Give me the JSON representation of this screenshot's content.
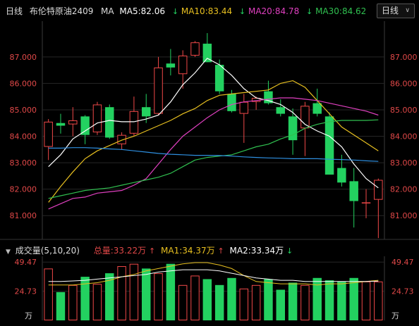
{
  "header": {
    "period_label": "日线",
    "instrument": "布伦特原油2409",
    "ma_label": "MA",
    "ma5": "MA5:82.06",
    "ma10": "MA10:83.44",
    "ma20": "MA20:84.78",
    "ma30": "MA30:84.62",
    "period_select": "日线"
  },
  "volume_header": {
    "title": "成交量(5,10,20)",
    "total": "总量:33.22万",
    "ma1": "MA1:34.37万",
    "ma2": "MA2:33.34万"
  },
  "colors": {
    "up": "#f04848",
    "down": "#23d160",
    "ma5": "#ffffff",
    "ma10": "#e8c020",
    "ma20": "#e040c0",
    "ma30": "#30c050",
    "blue_line": "#2e8fe0",
    "grid": "#262626",
    "axis_text": "#e04848"
  },
  "chart_data": {
    "type": "candlestick",
    "y_ticks": [
      "87.000",
      "86.000",
      "85.000",
      "84.000",
      "83.000",
      "82.000",
      "81.000"
    ],
    "y_tick_values": [
      87,
      86,
      85,
      84,
      83,
      82,
      81
    ],
    "ylim": [
      80.1,
      88.3
    ],
    "volume_ticks": [
      "49.47",
      "24.73",
      "万"
    ],
    "volume_tick_values": [
      49.47,
      24.73
    ],
    "volume_ylim": [
      0,
      52
    ],
    "candles": [
      {
        "o": 83.6,
        "h": 84.65,
        "l": 83.1,
        "c": 84.55,
        "v": 44
      },
      {
        "o": 84.5,
        "h": 84.85,
        "l": 84.1,
        "c": 84.4,
        "v": 24
      },
      {
        "o": 84.45,
        "h": 85.1,
        "l": 84.0,
        "c": 84.6,
        "v": 30
      },
      {
        "o": 84.75,
        "h": 84.8,
        "l": 83.7,
        "c": 84.05,
        "v": 37
      },
      {
        "o": 84.15,
        "h": 85.3,
        "l": 84.05,
        "c": 85.2,
        "v": 31
      },
      {
        "o": 85.1,
        "h": 85.2,
        "l": 83.9,
        "c": 83.95,
        "v": 40
      },
      {
        "o": 83.7,
        "h": 84.15,
        "l": 83.5,
        "c": 84.05,
        "v": 46
      },
      {
        "o": 84.1,
        "h": 85.5,
        "l": 84.0,
        "c": 84.95,
        "v": 48
      },
      {
        "o": 85.1,
        "h": 85.6,
        "l": 84.5,
        "c": 84.75,
        "v": 44
      },
      {
        "o": 84.85,
        "h": 87.0,
        "l": 84.8,
        "c": 86.6,
        "v": 40
      },
      {
        "o": 86.75,
        "h": 87.3,
        "l": 86.3,
        "c": 86.6,
        "v": 48
      },
      {
        "o": 86.35,
        "h": 87.25,
        "l": 85.8,
        "c": 87.05,
        "v": 30
      },
      {
        "o": 87.05,
        "h": 87.6,
        "l": 87.0,
        "c": 87.55,
        "v": 38
      },
      {
        "o": 87.5,
        "h": 87.9,
        "l": 86.8,
        "c": 86.8,
        "v": 35
      },
      {
        "o": 86.7,
        "h": 86.9,
        "l": 85.6,
        "c": 85.7,
        "v": 30
      },
      {
        "o": 85.6,
        "h": 85.75,
        "l": 84.9,
        "c": 84.95,
        "v": 36
      },
      {
        "o": 84.85,
        "h": 85.6,
        "l": 83.75,
        "c": 85.3,
        "v": 27
      },
      {
        "o": 85.3,
        "h": 85.5,
        "l": 85.0,
        "c": 85.45,
        "v": 30
      },
      {
        "o": 85.7,
        "h": 86.1,
        "l": 85.2,
        "c": 85.25,
        "v": 35
      },
      {
        "o": 85.1,
        "h": 85.4,
        "l": 84.75,
        "c": 84.85,
        "v": 26
      },
      {
        "o": 84.75,
        "h": 85.05,
        "l": 83.3,
        "c": 83.85,
        "v": 32
      },
      {
        "o": 84.3,
        "h": 85.3,
        "l": 83.25,
        "c": 85.15,
        "v": 30
      },
      {
        "o": 85.25,
        "h": 85.8,
        "l": 84.75,
        "c": 84.85,
        "v": 36
      },
      {
        "o": 84.75,
        "h": 84.9,
        "l": 82.55,
        "c": 82.55,
        "v": 34
      },
      {
        "o": 82.8,
        "h": 83.3,
        "l": 82.1,
        "c": 82.25,
        "v": 33
      },
      {
        "o": 82.3,
        "h": 82.8,
        "l": 80.55,
        "c": 81.55,
        "v": 36
      },
      {
        "o": 81.5,
        "h": 82.0,
        "l": 80.9,
        "c": 81.5,
        "v": 33
      },
      {
        "o": 81.6,
        "h": 82.4,
        "l": 80.15,
        "c": 82.35,
        "v": 33
      }
    ],
    "series": [
      {
        "name": "MA5",
        "values": [
          82.85,
          83.3,
          83.9,
          84.2,
          84.5,
          84.6,
          84.55,
          84.55,
          84.65,
          84.8,
          85.3,
          85.95,
          86.4,
          86.95,
          86.7,
          86.3,
          85.8,
          85.45,
          85.35,
          85.2,
          84.9,
          84.45,
          84.2,
          84.0,
          83.6,
          82.95,
          82.4,
          82.05
        ]
      },
      {
        "name": "MA10",
        "values": [
          81.5,
          82.1,
          82.65,
          83.15,
          83.45,
          83.65,
          83.85,
          84.0,
          84.2,
          84.4,
          84.6,
          84.85,
          85.05,
          85.35,
          85.55,
          85.6,
          85.65,
          85.7,
          85.75,
          86.0,
          86.1,
          85.85,
          85.35,
          84.85,
          84.35,
          84.05,
          83.75,
          83.45
        ]
      },
      {
        "name": "MA20",
        "values": [
          81.25,
          81.45,
          81.65,
          81.7,
          81.85,
          81.9,
          81.95,
          82.15,
          82.4,
          82.95,
          83.5,
          84.0,
          84.35,
          84.7,
          85.0,
          85.2,
          85.3,
          85.35,
          85.4,
          85.45,
          85.45,
          85.4,
          85.35,
          85.25,
          85.15,
          85.05,
          84.95,
          84.8
        ]
      },
      {
        "name": "MA30",
        "values": [
          81.65,
          81.75,
          81.85,
          81.95,
          82.0,
          82.05,
          82.15,
          82.25,
          82.35,
          82.45,
          82.6,
          82.85,
          83.1,
          83.2,
          83.25,
          83.3,
          83.45,
          83.6,
          83.7,
          83.9,
          84.05,
          84.3,
          84.45,
          84.55,
          84.6,
          84.6,
          84.6,
          84.62
        ]
      },
      {
        "name": "",
        "values": [
          83.55,
          83.55,
          83.57,
          83.57,
          83.55,
          83.52,
          83.5,
          83.45,
          83.4,
          83.35,
          83.32,
          83.3,
          83.28,
          83.28,
          83.27,
          83.25,
          83.22,
          83.2,
          83.18,
          83.17,
          83.15,
          83.15,
          83.15,
          83.13,
          83.12,
          83.1,
          83.07,
          83.05
        ]
      }
    ],
    "volume_series": [
      {
        "name": "MA1",
        "values": [
          30,
          30,
          30,
          31,
          32,
          34,
          37,
          39,
          42,
          44,
          46,
          48,
          49,
          49,
          47,
          44,
          38,
          33,
          32,
          31,
          31,
          31,
          30,
          31,
          31,
          32,
          33,
          34
        ]
      },
      {
        "name": "MA2",
        "values": [
          33,
          33,
          33.5,
          34,
          35,
          36,
          37,
          38,
          39,
          41,
          42,
          43,
          43,
          43,
          42,
          40,
          38,
          36,
          35,
          34,
          34,
          33,
          33,
          33,
          33,
          33,
          33,
          33.3
        ]
      }
    ]
  }
}
